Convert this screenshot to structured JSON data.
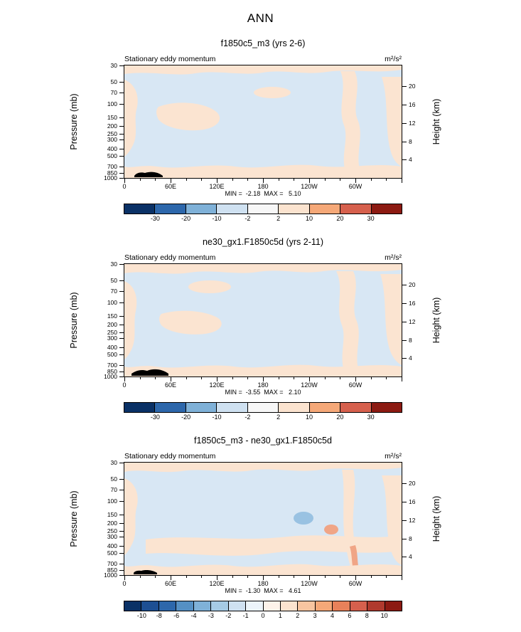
{
  "main_title": "ANN",
  "colors": {
    "plot_blue": "#d8e7f4",
    "plot_peach": "#fbe4d1",
    "spot_blue": "#99c2e2",
    "spot_orange": "#f0a586",
    "topo_black": "#000000"
  },
  "axes": {
    "pressure_label": "Pressure (mb)",
    "height_label": "Height (km)",
    "pressure_ticks": [
      30,
      50,
      70,
      100,
      150,
      200,
      250,
      300,
      400,
      500,
      700,
      850,
      1000
    ],
    "height_ticks": [
      20,
      16,
      12,
      8,
      4
    ],
    "lon_ticks": [
      "0",
      "60E",
      "120E",
      "180",
      "120W",
      "60W"
    ]
  },
  "panels": [
    {
      "title": "f1850c5_m3 (yrs 2-6)",
      "field_label": "Stationary eddy momentum",
      "units": "m²/s²",
      "minmax": "MIN =  -2.18  MAX =   5.10",
      "colorbar": {
        "labels": [
          "-30",
          "-20",
          "-10",
          "-2",
          "2",
          "10",
          "20",
          "30"
        ],
        "colors": [
          "#0a3166",
          "#2d67ab",
          "#7fb1d8",
          "#cfe1f1",
          "#f7f7f7",
          "#fbe3cf",
          "#f5a878",
          "#d6604d",
          "#8c1a12"
        ]
      }
    },
    {
      "title": "ne30_gx1.F1850c5d (yrs 2-11)",
      "field_label": "Stationary eddy momentum",
      "units": "m²/s²",
      "minmax": "MIN =  -3.55  MAX =   2.10",
      "colorbar": {
        "labels": [
          "-30",
          "-20",
          "-10",
          "-2",
          "2",
          "10",
          "20",
          "30"
        ],
        "colors": [
          "#0a3166",
          "#2d67ab",
          "#7fb1d8",
          "#cfe1f1",
          "#f7f7f7",
          "#fbe3cf",
          "#f5a878",
          "#d6604d",
          "#8c1a12"
        ]
      }
    },
    {
      "title": "f1850c5_m3 - ne30_gx1.F1850c5d",
      "field_label": "Stationary eddy momentum",
      "units": "m²/s²",
      "minmax": "MIN =  -1.30  MAX =   4.61",
      "colorbar": {
        "labels": [
          "-10",
          "-8",
          "-6",
          "-4",
          "-3",
          "-2",
          "-1",
          "0",
          "1",
          "2",
          "3",
          "4",
          "6",
          "8",
          "10"
        ],
        "colors": [
          "#0a3166",
          "#1d4f93",
          "#2d67ab",
          "#5590c4",
          "#7fb1d8",
          "#a6cbe5",
          "#cfe1f1",
          "#ecf4fa",
          "#fdf3ea",
          "#fbe3cf",
          "#f8c5a0",
          "#f5a878",
          "#e8815a",
          "#d6604d",
          "#b03a2e",
          "#8c1a12"
        ]
      }
    }
  ],
  "chart_data": [
    {
      "type": "heatmap",
      "title": "f1850c5_m3 (yrs 2-6)",
      "variable": "Stationary eddy momentum",
      "units": "m²/s²",
      "x_ticks": [
        "0",
        "60E",
        "120E",
        "180",
        "120W",
        "60W"
      ],
      "x_range_deg": [
        0,
        360
      ],
      "y_left_label": "Pressure (mb)",
      "y_left_scale": "log",
      "y_left_ticks": [
        30,
        50,
        70,
        100,
        150,
        200,
        250,
        300,
        400,
        500,
        700,
        850,
        1000
      ],
      "y_right_label": "Height (km)",
      "y_right_ticks": [
        20,
        16,
        12,
        8,
        4
      ],
      "min": -2.18,
      "max": 5.1,
      "contour_levels": [
        -30,
        -20,
        -10,
        -2,
        2,
        10,
        20,
        30
      ],
      "legend_position": "bottom"
    },
    {
      "type": "heatmap",
      "title": "ne30_gx1.F1850c5d (yrs 2-11)",
      "variable": "Stationary eddy momentum",
      "units": "m²/s²",
      "x_ticks": [
        "0",
        "60E",
        "120E",
        "180",
        "120W",
        "60W"
      ],
      "x_range_deg": [
        0,
        360
      ],
      "y_left_label": "Pressure (mb)",
      "y_left_scale": "log",
      "y_left_ticks": [
        30,
        50,
        70,
        100,
        150,
        200,
        250,
        300,
        400,
        500,
        700,
        850,
        1000
      ],
      "y_right_label": "Height (km)",
      "y_right_ticks": [
        20,
        16,
        12,
        8,
        4
      ],
      "min": -3.55,
      "max": 2.1,
      "contour_levels": [
        -30,
        -20,
        -10,
        -2,
        2,
        10,
        20,
        30
      ],
      "legend_position": "bottom"
    },
    {
      "type": "heatmap",
      "title": "f1850c5_m3 - ne30_gx1.F1850c5d",
      "variable": "Stationary eddy momentum",
      "units": "m²/s²",
      "x_ticks": [
        "0",
        "60E",
        "120E",
        "180",
        "120W",
        "60W"
      ],
      "x_range_deg": [
        0,
        360
      ],
      "y_left_label": "Pressure (mb)",
      "y_left_scale": "log",
      "y_left_ticks": [
        30,
        50,
        70,
        100,
        150,
        200,
        250,
        300,
        400,
        500,
        700,
        850,
        1000
      ],
      "y_right_label": "Height (km)",
      "y_right_ticks": [
        20,
        16,
        12,
        8,
        4
      ],
      "min": -1.3,
      "max": 4.61,
      "contour_levels": [
        -10,
        -8,
        -6,
        -4,
        -3,
        -2,
        -1,
        0,
        1,
        2,
        3,
        4,
        6,
        8,
        10
      ],
      "legend_position": "bottom"
    }
  ]
}
